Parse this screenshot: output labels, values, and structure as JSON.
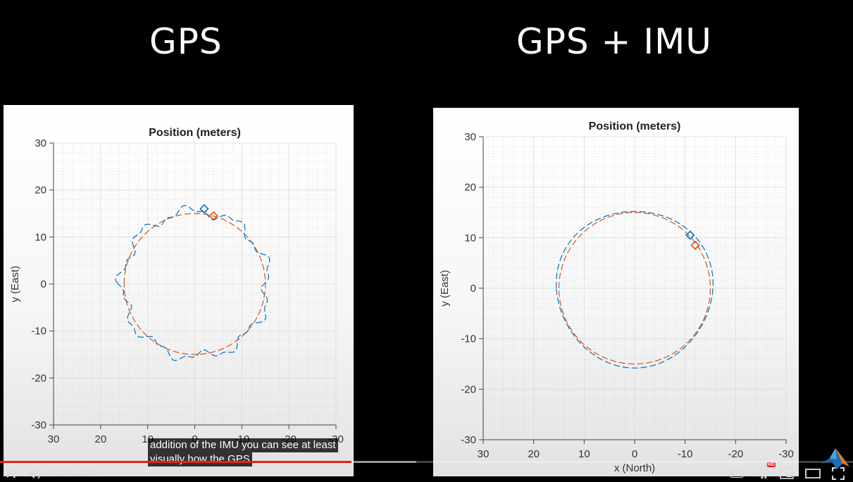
{
  "headings": {
    "left": "GPS",
    "right": "GPS + IMU"
  },
  "charts": {
    "left": {
      "title": "Position (meters)",
      "ylabel": "y (East)",
      "xlabel": "",
      "yticks": [
        "30",
        "20",
        "10",
        "0",
        "-10",
        "-20",
        "-30"
      ],
      "xticks": [
        "30",
        "20",
        "10",
        "0",
        "-10",
        "-20",
        "-30"
      ]
    },
    "right": {
      "title": "Position (meters)",
      "ylabel": "y (East)",
      "xlabel": "x (North)",
      "yticks": [
        "30",
        "20",
        "10",
        "0",
        "-10",
        "-20",
        "-30"
      ],
      "xticks": [
        "30",
        "20",
        "10",
        "0",
        "-10",
        "-20",
        "-30"
      ]
    }
  },
  "chart_data": [
    {
      "type": "line",
      "title": "Position (meters)",
      "xlabel": "",
      "ylabel": "y (East)",
      "xlim": [
        30,
        -30
      ],
      "ylim": [
        -30,
        30
      ],
      "grid": true,
      "series": [
        {
          "color": "#d95319",
          "style": "dashed",
          "shape": "circle",
          "center": [
            0,
            0
          ],
          "radius": 15,
          "marker": {
            "type": "diamond",
            "x": -4,
            "y": 14.5
          }
        },
        {
          "color": "#0072bd",
          "style": "dashed",
          "shape": "noisy-circle",
          "center": [
            0,
            0
          ],
          "radius": 15.5,
          "marker": {
            "type": "diamond",
            "x": -2,
            "y": 16
          }
        }
      ]
    },
    {
      "type": "line",
      "title": "Position (meters)",
      "xlabel": "x (North)",
      "ylabel": "y (East)",
      "xlim": [
        30,
        -30
      ],
      "ylim": [
        -30,
        30
      ],
      "grid": true,
      "series": [
        {
          "color": "#d95319",
          "style": "dashed",
          "shape": "circle",
          "center": [
            0,
            0
          ],
          "radius": 15,
          "marker": {
            "type": "diamond",
            "x": -12,
            "y": 8.5
          }
        },
        {
          "color": "#0072bd",
          "style": "dashed",
          "shape": "smooth-circle",
          "center": [
            0,
            0
          ],
          "radius": 15.5,
          "marker": {
            "type": "diamond",
            "x": -11,
            "y": 10.5
          }
        }
      ]
    }
  ],
  "player": {
    "caption_line1": "addition of the IMU you can see at least",
    "caption_line2": "visually how the GPS",
    "time": "6:05 / 13:59",
    "progress": 0.412,
    "buffered": 0.488,
    "hd_badge": "HD",
    "cc_label": "CC"
  }
}
